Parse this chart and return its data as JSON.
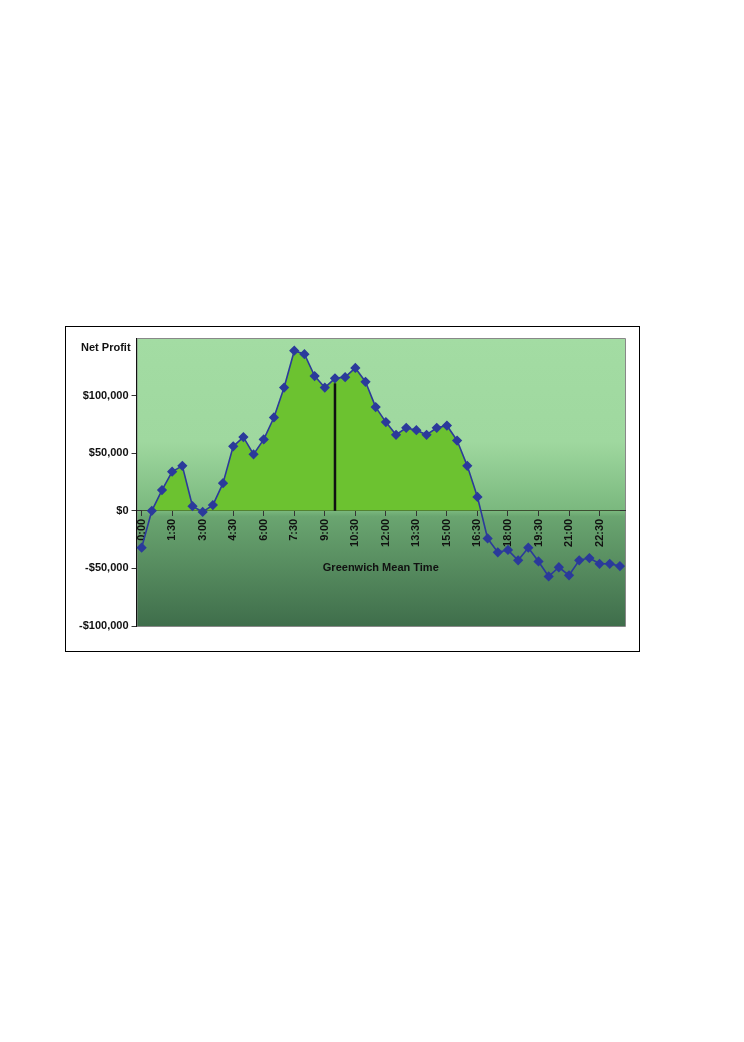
{
  "chart_data": {
    "type": "area",
    "ylabel": "Net Profit",
    "xlabel": "Greenwich Mean Time",
    "x": [
      0,
      0.5,
      1,
      1.5,
      2,
      2.5,
      3,
      3.5,
      4,
      4.5,
      5,
      5.5,
      6,
      6.5,
      7,
      7.5,
      8,
      8.5,
      9,
      9.5,
      10,
      10.5,
      11,
      11.5,
      12,
      12.5,
      13,
      13.5,
      14,
      14.5,
      15,
      15.5,
      16,
      16.5,
      17,
      17.5,
      18,
      18.5,
      19,
      19.5,
      20,
      20.5,
      21,
      21.5,
      22,
      22.5,
      23,
      23.5
    ],
    "series": [
      {
        "color": "#2b3a9b",
        "values": [
          -32000,
          0,
          18000,
          34000,
          39000,
          4000,
          -1000,
          5000,
          24000,
          56000,
          64000,
          49000,
          62000,
          81000,
          107000,
          139000,
          136000,
          117000,
          107000,
          115000,
          116000,
          124000,
          112000,
          90000,
          77000,
          66000,
          72000,
          70000,
          66000,
          72000,
          74000,
          61000,
          39000,
          12000,
          -24000,
          -36000,
          -34000,
          -43000,
          -32000,
          -44000,
          -57000,
          -49000,
          -56000,
          -43000,
          -41000,
          -46000,
          -46000,
          -48000
        ]
      }
    ],
    "xlim": [
      -0.25,
      23.75
    ],
    "xticks": [
      {
        "value": 0,
        "label": "0:00"
      },
      {
        "value": 1.5,
        "label": "1:30"
      },
      {
        "value": 3,
        "label": "3:00"
      },
      {
        "value": 4.5,
        "label": "4:30"
      },
      {
        "value": 6,
        "label": "6:00"
      },
      {
        "value": 7.5,
        "label": "7:30"
      },
      {
        "value": 9,
        "label": "9:00"
      },
      {
        "value": 10.5,
        "label": "10:30"
      },
      {
        "value": 12,
        "label": "12:00"
      },
      {
        "value": 13.5,
        "label": "13:30"
      },
      {
        "value": 15,
        "label": "15:00"
      },
      {
        "value": 16.5,
        "label": "16:30"
      },
      {
        "value": 18,
        "label": "18:00"
      },
      {
        "value": 19.5,
        "label": "19:30"
      },
      {
        "value": 21,
        "label": "21:00"
      },
      {
        "value": 22.5,
        "label": "22:30"
      }
    ],
    "ylim": [
      -100000,
      150000
    ],
    "yticks": [
      {
        "value": -100000,
        "label": "-$100,000"
      },
      {
        "value": -50000,
        "label": "-$50,000"
      },
      {
        "value": 0,
        "label": "$0"
      },
      {
        "value": 50000,
        "label": "$50,000"
      },
      {
        "value": 100000,
        "label": "$100,000"
      }
    ],
    "ref_lines": [
      {
        "axis": "x",
        "value": 9.5,
        "color": "#111111"
      }
    ],
    "marker": "diamond",
    "grid": false,
    "legend": false
  }
}
